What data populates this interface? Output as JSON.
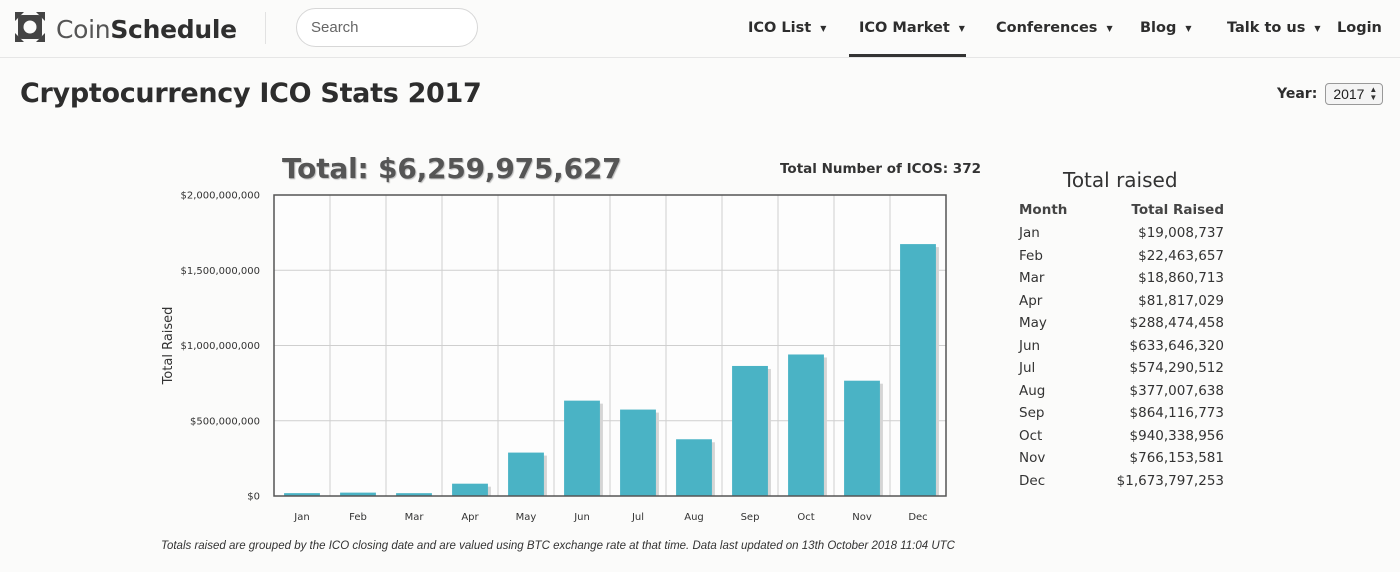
{
  "header": {
    "logo_light": "Coin",
    "logo_bold": "Schedule",
    "search_placeholder": "Search",
    "nav": [
      {
        "label": "ICO List",
        "caret": "▼"
      },
      {
        "label": "ICO Market",
        "caret": "▼"
      },
      {
        "label": "Conferences",
        "caret": "▼"
      },
      {
        "label": "Blog",
        "caret": "▼"
      },
      {
        "label": "Talk to us",
        "caret": "▼"
      },
      {
        "label": "Login"
      }
    ]
  },
  "page": {
    "title": "Cryptocurrency ICO Stats 2017",
    "year_label": "Year:",
    "year_value": "2017"
  },
  "summary": {
    "total": "Total: $6,259,975,627",
    "num_icos": "Total Number of ICOS: 372"
  },
  "footnote": "Totals raised are grouped by the ICO closing date and are valued using BTC exchange rate at that time. Data last updated on 13th October 2018 11:04 UTC",
  "chart_data": {
    "type": "bar",
    "categories": [
      "Jan",
      "Feb",
      "Mar",
      "Apr",
      "May",
      "Jun",
      "Jul",
      "Aug",
      "Sep",
      "Oct",
      "Nov",
      "Dec"
    ],
    "values": [
      19008737,
      22463657,
      18860713,
      81817029,
      288474458,
      633646320,
      574290512,
      377007638,
      864116773,
      940338956,
      766153581,
      1673797253
    ],
    "ylabel": "Total Raised",
    "xlabel": "",
    "ylim": [
      0,
      2000000000
    ],
    "y_ticks": [
      0,
      500000000,
      1000000000,
      1500000000,
      2000000000
    ],
    "y_tick_labels": [
      "$0",
      "$500,000,000",
      "$1,000,000,000",
      "$1,500,000,000",
      "$2,000,000,000"
    ],
    "grid": true,
    "bar_color": "#4ab3c5"
  },
  "table": {
    "title": "Total raised",
    "col_month": "Month",
    "col_total": "Total Raised",
    "rows": [
      {
        "month": "Jan",
        "total": "$19,008,737"
      },
      {
        "month": "Feb",
        "total": "$22,463,657"
      },
      {
        "month": "Mar",
        "total": "$18,860,713"
      },
      {
        "month": "Apr",
        "total": "$81,817,029"
      },
      {
        "month": "May",
        "total": "$288,474,458"
      },
      {
        "month": "Jun",
        "total": "$633,646,320"
      },
      {
        "month": "Jul",
        "total": "$574,290,512"
      },
      {
        "month": "Aug",
        "total": "$377,007,638"
      },
      {
        "month": "Sep",
        "total": "$864,116,773"
      },
      {
        "month": "Oct",
        "total": "$940,338,956"
      },
      {
        "month": "Nov",
        "total": "$766,153,581"
      },
      {
        "month": "Dec",
        "total": "$1,673,797,253"
      }
    ]
  }
}
